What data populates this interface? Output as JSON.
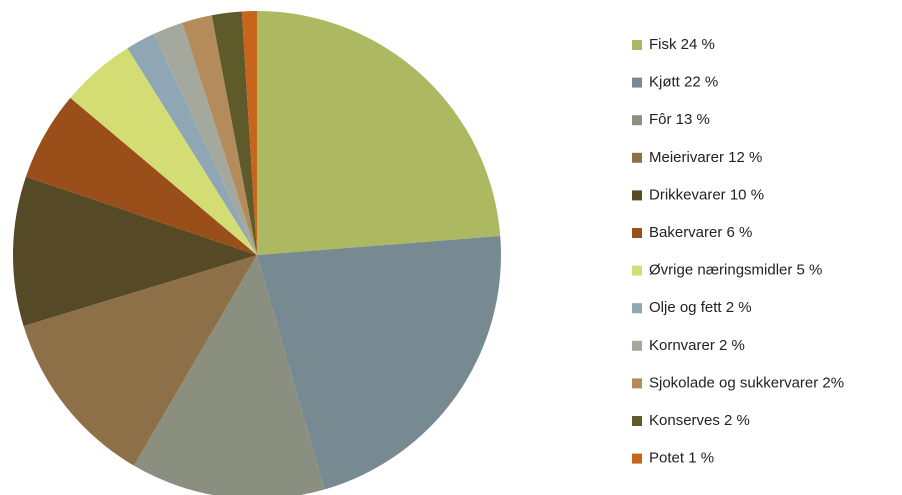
{
  "chart_data": {
    "type": "pie",
    "categories": [
      "Fisk 24 %",
      "Kjøtt 22 %",
      "Fôr 13 %",
      "Meierivarer 12 %",
      "Drikkevarer 10 %",
      "Bakervarer 6 %",
      "Øvrige næringsmidler 5 %",
      "Olje og fett 2 %",
      "Kornvarer 2 %",
      "Sjokolade og sukkervarer  2%",
      "Konserves 2 %",
      "Potet 1 %"
    ],
    "values": [
      24,
      22,
      13,
      12,
      10,
      6,
      5,
      2,
      2,
      2,
      2,
      1
    ],
    "colors": [
      "#adb960",
      "#778a92",
      "#8a8f7f",
      "#8e7048",
      "#554a25",
      "#9a4e1a",
      "#d4dd74",
      "#8fa7b5",
      "#a5a89c",
      "#b48c5c",
      "#5e5a2a",
      "#c8651c"
    ],
    "legend": "right"
  }
}
